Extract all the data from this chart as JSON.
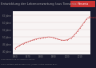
{
  "title": "Entwicklung der Lebenserwartung (aus Tansania)",
  "title_bg": "#1a1a2e",
  "title_color": "#aaaaaa",
  "outer_bg": "#1a1a2e",
  "plot_bg": "#f8f4f4",
  "line_color": "#d47070",
  "dot_color": "#d47070",
  "years": [
    1960,
    1961,
    1962,
    1963,
    1964,
    1965,
    1966,
    1967,
    1968,
    1969,
    1970,
    1971,
    1972,
    1973,
    1974,
    1975,
    1976,
    1977,
    1978,
    1979,
    1980,
    1981,
    1982,
    1983,
    1984,
    1985,
    1986,
    1987,
    1988,
    1989,
    1990,
    1991,
    1992,
    1993,
    1994,
    1995,
    1996,
    1997,
    1998,
    1999,
    2000,
    2001,
    2002,
    2003,
    2004,
    2005,
    2006,
    2007,
    2008,
    2009,
    2010,
    2011,
    2012,
    2013,
    2014,
    2015,
    2016
  ],
  "values": [
    42.1,
    42.8,
    43.4,
    44.0,
    44.5,
    45.0,
    45.4,
    45.8,
    46.2,
    46.5,
    46.8,
    47.1,
    47.5,
    47.8,
    48.1,
    48.4,
    48.6,
    48.8,
    49.0,
    49.2,
    49.4,
    49.5,
    49.7,
    49.8,
    49.9,
    50.0,
    50.1,
    50.0,
    49.9,
    49.7,
    49.5,
    49.2,
    48.9,
    48.6,
    48.3,
    48.0,
    47.9,
    47.8,
    47.8,
    47.9,
    48.1,
    48.4,
    48.8,
    49.3,
    50.0,
    50.8,
    51.8,
    52.8,
    53.9,
    55.0,
    56.2,
    57.4,
    58.6,
    59.8,
    61.0,
    62.2,
    63.2
  ],
  "ylim": [
    38,
    68
  ],
  "xlim": [
    1958,
    2018
  ],
  "yticks": [
    40,
    45,
    50,
    55,
    60,
    65
  ],
  "ytick_labels": [
    "40 Jahre",
    "45 Jahre",
    "50 Jahre",
    "55 Jahre",
    "60 Jahre",
    "65 Jahre"
  ],
  "xticks": [
    1960,
    1970,
    1980,
    1990,
    2000,
    2010
  ],
  "legend_label": "Tansania",
  "legend_bg": "#cc3333",
  "legend_text_color": "#ffffff",
  "grid_color": "#ddcccc",
  "font_color": "#888888",
  "footer1": "Lebenserwartung bei Geburt in Jahren",
  "footer2": "Quelle: Weltbank (data.worldbank.org) | Lizenz: Creative Commons BY-SA",
  "footer_color": "#777777",
  "end_label": "Tansania",
  "end_label_color": "#cc3333"
}
